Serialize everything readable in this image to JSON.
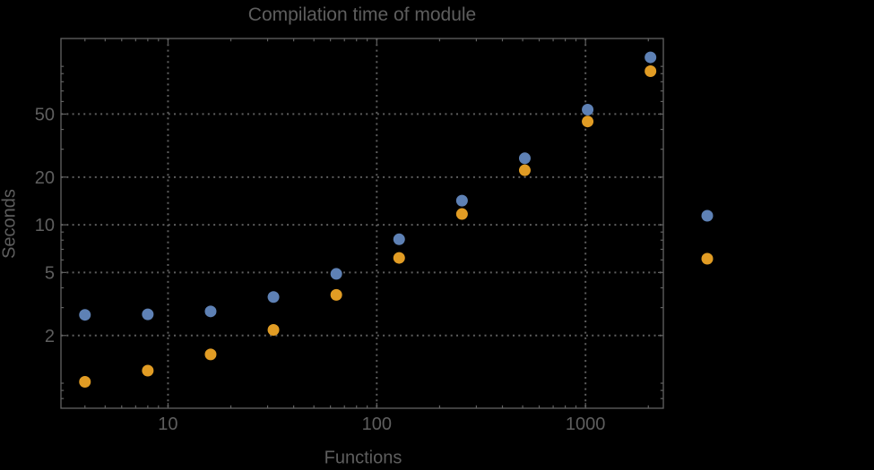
{
  "chart_data": {
    "type": "scatter",
    "title": "Compilation time of module",
    "xlabel": "Functions",
    "ylabel": "Seconds",
    "x_scale": "log",
    "y_scale": "log",
    "xlim": [
      3.07,
      2360
    ],
    "ylim": [
      0.695,
      150
    ],
    "grid_style": "dotted",
    "grid_on": true,
    "x": [
      4,
      8,
      16,
      32,
      64,
      128,
      256,
      512,
      1024,
      2048
    ],
    "series": [
      {
        "name": "series-1-blue",
        "color": "#5E81B5",
        "values": [
          2.7,
          2.72,
          2.84,
          3.5,
          4.9,
          8.1,
          14.2,
          26.3,
          53.3,
          114
        ]
      },
      {
        "name": "series-2-orange",
        "color": "#E19C24",
        "values": [
          1.02,
          1.2,
          1.52,
          2.17,
          3.61,
          6.18,
          11.7,
          22.1,
          44.9,
          93.3
        ]
      }
    ],
    "x_ticks": {
      "major": [
        10,
        100,
        1000
      ],
      "major_labels": [
        "10",
        "100",
        "1000"
      ],
      "minor": [
        4,
        5,
        6,
        7,
        8,
        9,
        20,
        30,
        40,
        50,
        60,
        70,
        80,
        90,
        200,
        300,
        400,
        500,
        600,
        700,
        800,
        900,
        2000
      ]
    },
    "y_ticks": {
      "major": [
        2,
        5,
        10,
        20,
        50
      ],
      "major_labels": [
        "2",
        "5",
        "10",
        "20",
        "50"
      ],
      "minor": [
        0.8,
        0.9,
        1,
        3,
        4,
        6,
        7,
        8,
        9,
        30,
        40,
        60,
        70,
        80,
        90,
        100
      ]
    },
    "legend": {
      "position": "right-outside",
      "markers": [
        {
          "color": "#5E81B5",
          "label": ""
        },
        {
          "color": "#E19C24",
          "label": ""
        }
      ]
    }
  },
  "colors": {
    "background": "#000000",
    "frame": "#626262",
    "grid": "#5d5d5d",
    "text": "#5e5e5e",
    "series_blue": "#5E81B5",
    "series_orange": "#E19C24"
  }
}
